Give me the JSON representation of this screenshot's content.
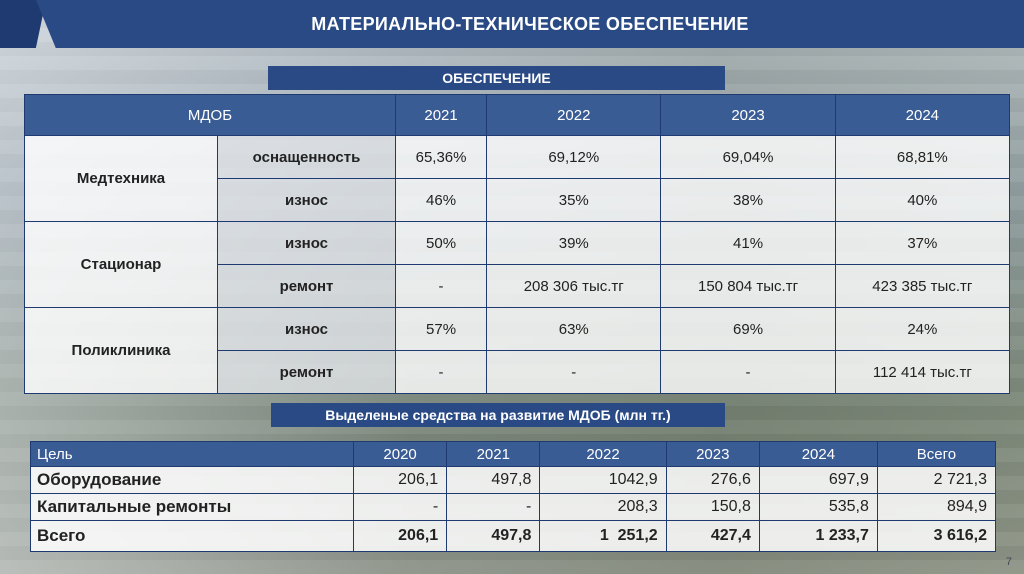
{
  "title": "МАТЕРИАЛЬНО-ТЕХНИЧЕСКОЕ ОБЕСПЕЧЕНИЕ",
  "section1": {
    "heading": "ОБЕСПЕЧЕНИЕ",
    "headers": [
      "МДОБ",
      "2021",
      "2022",
      "2023",
      "2024"
    ],
    "groups": [
      {
        "name": "Медтехника",
        "rows": [
          {
            "label": "оснащенность",
            "values": [
              "65,36%",
              "69,12%",
              "69,04%",
              "68,81%"
            ]
          },
          {
            "label": "износ",
            "values": [
              "46%",
              "35%",
              "38%",
              "40%"
            ]
          }
        ]
      },
      {
        "name": "Стационар",
        "rows": [
          {
            "label": "износ",
            "values": [
              "50%",
              "39%",
              "41%",
              "37%"
            ]
          },
          {
            "label": "ремонт",
            "values": [
              "-",
              "208 306 тыс.тг",
              "150 804 тыс.тг",
              "423 385 тыс.тг"
            ]
          }
        ]
      },
      {
        "name": "Поликлиника",
        "rows": [
          {
            "label": "износ",
            "values": [
              "57%",
              "63%",
              "69%",
              "24%"
            ]
          },
          {
            "label": "ремонт",
            "values": [
              "-",
              "-",
              "-",
              "112 414 тыс.тг"
            ]
          }
        ]
      }
    ]
  },
  "section2": {
    "heading": "Выделеные средства на развитие МДОБ (млн тг.)",
    "headers": [
      "Цель",
      "2020",
      "2021",
      "2022",
      "2023",
      "2024",
      "Всего"
    ],
    "rows": [
      {
        "label": "Оборудование",
        "values": [
          "206,1",
          "497,8",
          "1042,9",
          "276,6",
          "697,9",
          "2 721,3"
        ]
      },
      {
        "label": "Капитальные ремонты",
        "values": [
          "-",
          "-",
          "208,3",
          "150,8",
          "535,8",
          "894,9"
        ]
      },
      {
        "label": "Всего",
        "values": [
          "206,1",
          "497,8",
          "1  251,2",
          "427,4",
          "1 233,7",
          "3 616,2"
        ]
      }
    ]
  },
  "page_number": "7"
}
